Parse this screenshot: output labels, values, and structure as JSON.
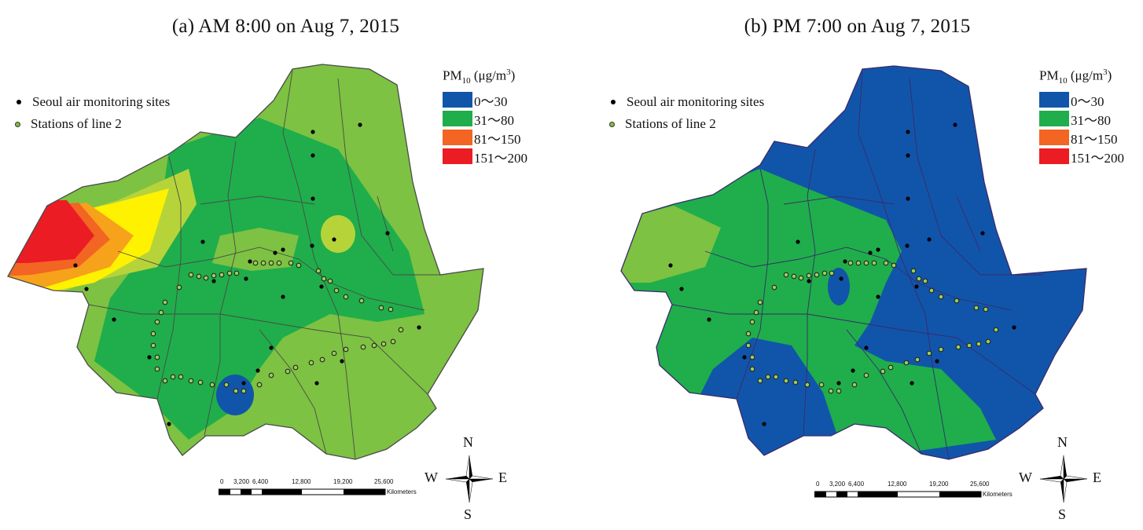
{
  "panels": [
    {
      "title": "(a) AM 8:00 on Aug 7, 2015",
      "base_class": "green",
      "zones": [
        "red-yellow plume in northwest",
        "light green patches",
        "blue patch south-center"
      ]
    },
    {
      "title": "(b) PM 7:00 on Aug 7, 2015",
      "base_class": "blue",
      "zones": [
        "green western and central belt",
        "light green patch in northwest"
      ]
    }
  ],
  "legend": {
    "markers": [
      {
        "label": "Seoul air monitoring sites",
        "icon": "black-dot-icon"
      },
      {
        "label": "Stations of line 2",
        "icon": "green-ring-icon"
      }
    ],
    "pm_title_main": "PM",
    "pm_title_sub": "10",
    "pm_title_unit_a": " (μg/m",
    "pm_title_unit_sup": "3",
    "pm_title_unit_b": ")",
    "classes": [
      {
        "label": "0～30",
        "color": "#1155aa"
      },
      {
        "label": "31～80",
        "color": "#1fae4b"
      },
      {
        "label": "81～150",
        "color": "#f26522"
      },
      {
        "label": "151～200",
        "color": "#ec1c24"
      }
    ]
  },
  "scale": {
    "ticks": [
      "0",
      "3,200",
      "6,400",
      "12,800",
      "19,200",
      "25,600"
    ],
    "unit": "Kilometers"
  },
  "compass": {
    "n": "N",
    "s": "S",
    "e": "E",
    "w": "W"
  },
  "colors": {
    "blue": "#1155aa",
    "green": "#1fae4b",
    "light_green": "#7dc242",
    "yellow_green": "#b6d43a",
    "yellow": "#fff200",
    "orange": "#f26522",
    "red": "#ec1c24",
    "boundary": "#4a4a4a"
  }
}
